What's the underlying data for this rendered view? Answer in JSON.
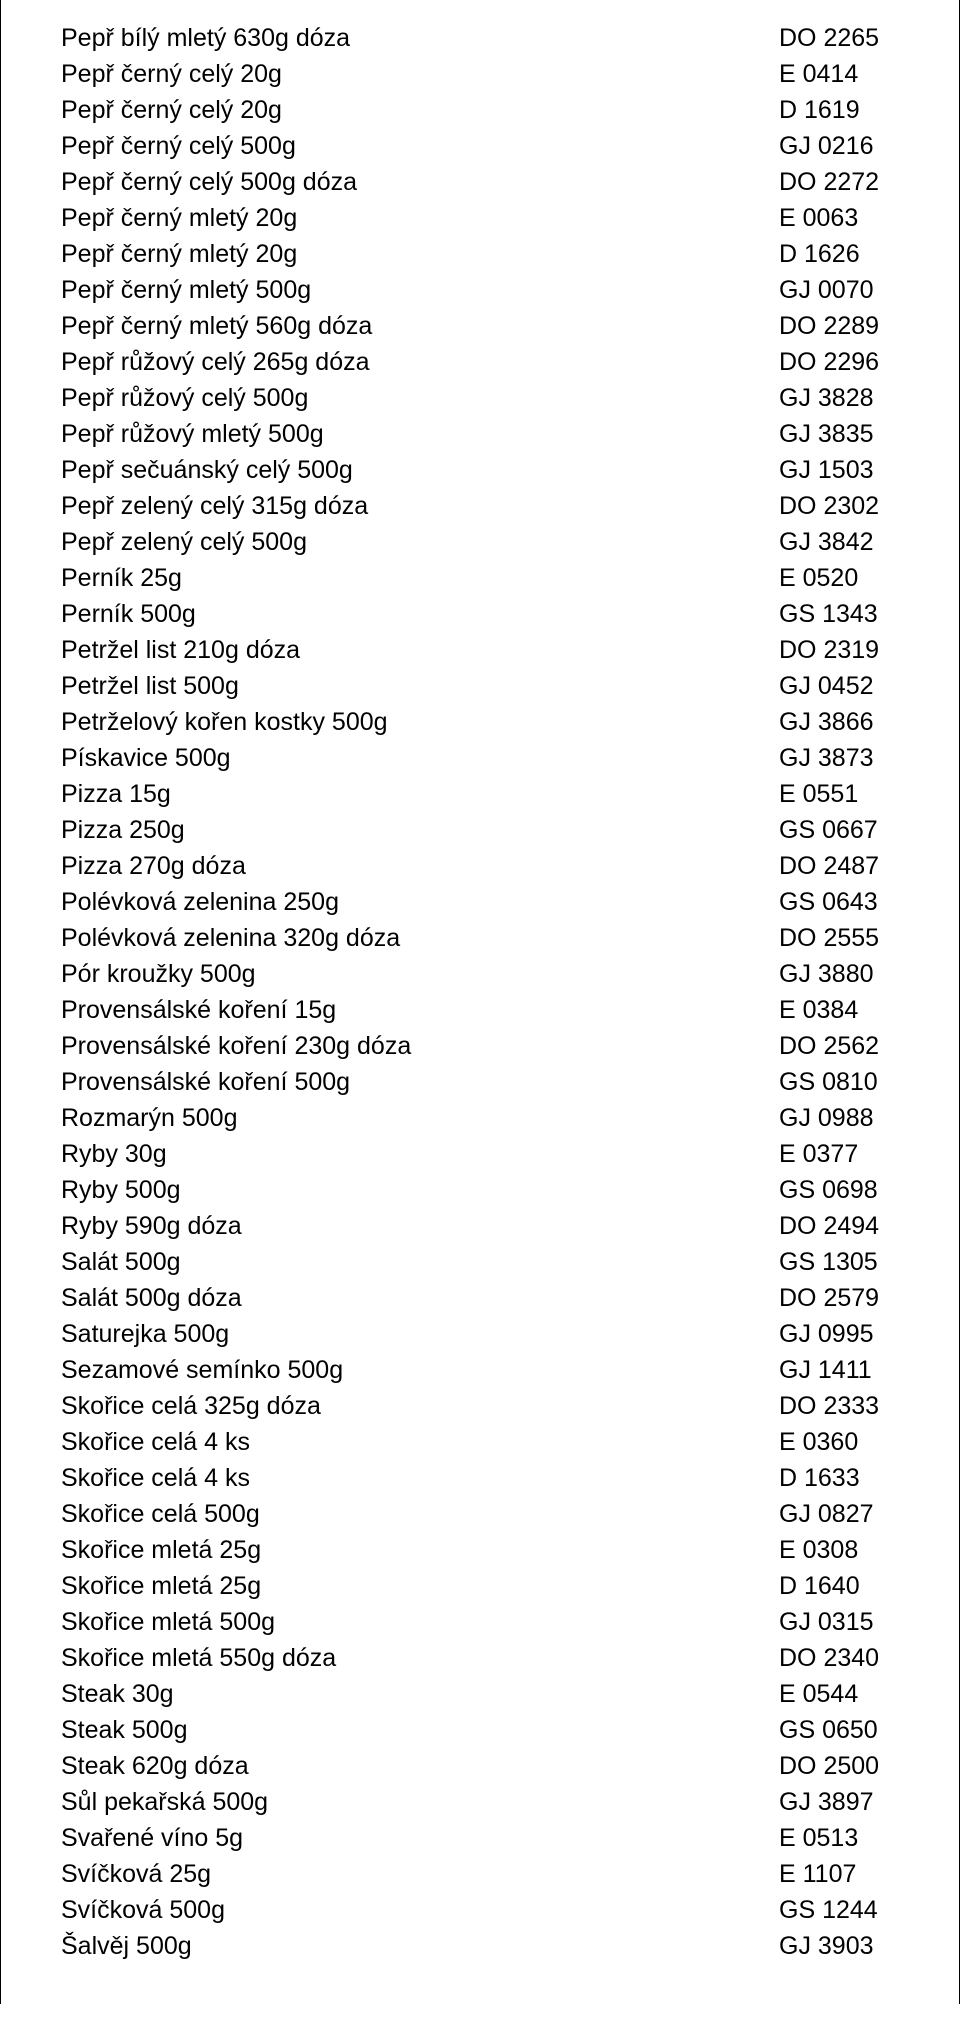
{
  "items": [
    {
      "name": "Pepř bílý mletý 630g dóza",
      "code": "DO 2265"
    },
    {
      "name": "Pepř černý celý 20g",
      "code": "E 0414"
    },
    {
      "name": "Pepř černý celý 20g",
      "code": "D 1619"
    },
    {
      "name": "Pepř černý celý 500g",
      "code": "GJ 0216"
    },
    {
      "name": "Pepř černý celý 500g dóza",
      "code": "DO 2272"
    },
    {
      "name": "Pepř černý mletý 20g",
      "code": "E 0063"
    },
    {
      "name": "Pepř černý mletý 20g",
      "code": "D 1626"
    },
    {
      "name": "Pepř černý mletý 500g",
      "code": "GJ 0070"
    },
    {
      "name": "Pepř černý mletý 560g dóza",
      "code": "DO 2289"
    },
    {
      "name": "Pepř růžový celý 265g dóza",
      "code": "DO 2296"
    },
    {
      "name": "Pepř růžový celý 500g",
      "code": "GJ 3828"
    },
    {
      "name": "Pepř růžový mletý 500g",
      "code": "GJ 3835"
    },
    {
      "name": "Pepř sečuánský celý 500g",
      "code": "GJ 1503"
    },
    {
      "name": "Pepř zelený celý 315g dóza",
      "code": "DO 2302"
    },
    {
      "name": "Pepř zelený celý 500g",
      "code": "GJ 3842"
    },
    {
      "name": "Perník 25g",
      "code": "E 0520"
    },
    {
      "name": "Perník 500g",
      "code": "GS 1343"
    },
    {
      "name": "Petržel list 210g dóza",
      "code": "DO 2319"
    },
    {
      "name": "Petržel list 500g",
      "code": "GJ 0452"
    },
    {
      "name": "Petrželový kořen kostky 500g",
      "code": "GJ 3866"
    },
    {
      "name": "Pískavice 500g",
      "code": "GJ 3873"
    },
    {
      "name": "Pizza 15g",
      "code": "E 0551"
    },
    {
      "name": "Pizza 250g",
      "code": "GS 0667"
    },
    {
      "name": "Pizza 270g dóza",
      "code": "DO 2487"
    },
    {
      "name": "Polévková zelenina 250g",
      "code": "GS 0643"
    },
    {
      "name": "Polévková zelenina 320g dóza",
      "code": "DO 2555"
    },
    {
      "name": "Pór kroužky 500g",
      "code": "GJ 3880"
    },
    {
      "name": "Provensálské koření 15g",
      "code": "E 0384"
    },
    {
      "name": "Provensálské koření 230g dóza",
      "code": "DO 2562"
    },
    {
      "name": "Provensálské koření 500g",
      "code": "GS 0810"
    },
    {
      "name": "Rozmarýn 500g",
      "code": "GJ 0988"
    },
    {
      "name": "Ryby 30g",
      "code": "E 0377"
    },
    {
      "name": "Ryby 500g",
      "code": "GS 0698"
    },
    {
      "name": "Ryby 590g dóza",
      "code": "DO 2494"
    },
    {
      "name": "Salát 500g",
      "code": "GS 1305"
    },
    {
      "name": "Salát 500g dóza",
      "code": "DO 2579"
    },
    {
      "name": "Saturejka 500g",
      "code": "GJ 0995"
    },
    {
      "name": "Sezamové semínko 500g",
      "code": "GJ 1411"
    },
    {
      "name": "Skořice celá 325g dóza",
      "code": "DO 2333"
    },
    {
      "name": "Skořice celá 4 ks",
      "code": "E 0360"
    },
    {
      "name": "Skořice celá 4 ks",
      "code": "D 1633"
    },
    {
      "name": "Skořice celá 500g",
      "code": "GJ 0827"
    },
    {
      "name": "Skořice mletá 25g",
      "code": "E 0308"
    },
    {
      "name": "Skořice mletá 25g",
      "code": "D 1640"
    },
    {
      "name": "Skořice mletá 500g",
      "code": "GJ 0315"
    },
    {
      "name": "Skořice mletá 550g dóza",
      "code": "DO 2340"
    },
    {
      "name": "Steak 30g",
      "code": "E 0544"
    },
    {
      "name": "Steak 500g",
      "code": "GS 0650"
    },
    {
      "name": "Steak 620g dóza",
      "code": "DO 2500"
    },
    {
      "name": "Sůl pekařská 500g",
      "code": "GJ 3897"
    },
    {
      "name": "Svařené víno 5g",
      "code": "E 0513"
    },
    {
      "name": "Svíčková 25g",
      "code": "E 1107"
    },
    {
      "name": "Svíčková 500g",
      "code": "GS 1244"
    },
    {
      "name": "Šalvěj 500g",
      "code": "GJ 3903"
    }
  ]
}
